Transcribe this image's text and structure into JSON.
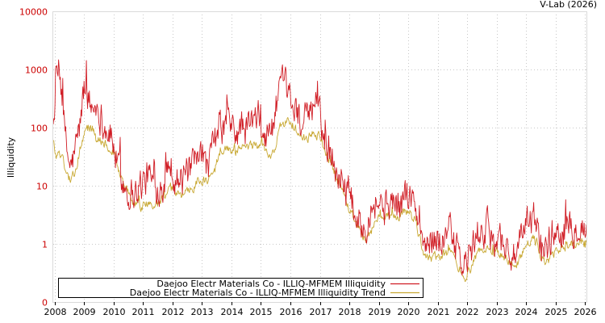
{
  "chart_data": {
    "type": "line",
    "credit": "V-Lab (2026)",
    "ylabel": "Illiquidity",
    "yscale": "log",
    "ylim": [
      0.1,
      10000
    ],
    "xlim": [
      2007.95,
      2026.05
    ],
    "yticks": [
      {
        "value": 10000,
        "label": "10000"
      },
      {
        "value": 1000,
        "label": "1000"
      },
      {
        "value": 100,
        "label": "100"
      },
      {
        "value": 10,
        "label": "10"
      },
      {
        "value": 1,
        "label": "1"
      },
      {
        "value": 0.1,
        "label": "0"
      }
    ],
    "xticks": [
      "2008",
      "2009",
      "2010",
      "2011",
      "2012",
      "2013",
      "2014",
      "2015",
      "2016",
      "2017",
      "2018",
      "2019",
      "2020",
      "2021",
      "2022",
      "2023",
      "2024",
      "2025",
      "2026"
    ],
    "series": [
      {
        "name": "Daejoo Electr Materials Co - ILLIQ-MFMEM Illiquidity",
        "color": "#d01c24",
        "noise": 0.55,
        "points": [
          [
            2007.95,
            120
          ],
          [
            2008.05,
            600
          ],
          [
            2008.15,
            900
          ],
          [
            2008.25,
            400
          ],
          [
            2008.35,
            60
          ],
          [
            2008.45,
            30
          ],
          [
            2008.55,
            20
          ],
          [
            2008.7,
            40
          ],
          [
            2008.85,
            100
          ],
          [
            2009.0,
            500
          ],
          [
            2009.1,
            400
          ],
          [
            2009.25,
            200
          ],
          [
            2009.4,
            250
          ],
          [
            2009.55,
            180
          ],
          [
            2009.7,
            100
          ],
          [
            2009.85,
            90
          ],
          [
            2010.0,
            50
          ],
          [
            2010.15,
            20
          ],
          [
            2010.3,
            12
          ],
          [
            2010.45,
            9
          ],
          [
            2010.6,
            8
          ],
          [
            2010.75,
            8
          ],
          [
            2010.9,
            10
          ],
          [
            2011.05,
            12
          ],
          [
            2011.2,
            15
          ],
          [
            2011.35,
            10
          ],
          [
            2011.5,
            10
          ],
          [
            2011.65,
            12
          ],
          [
            2011.8,
            15
          ],
          [
            2011.9,
            30
          ],
          [
            2012.0,
            20
          ],
          [
            2012.1,
            15
          ],
          [
            2012.25,
            12
          ],
          [
            2012.4,
            12
          ],
          [
            2012.55,
            18
          ],
          [
            2012.7,
            18
          ],
          [
            2012.85,
            25
          ],
          [
            2013.0,
            25
          ],
          [
            2013.15,
            20
          ],
          [
            2013.3,
            30
          ],
          [
            2013.45,
            60
          ],
          [
            2013.6,
            100
          ],
          [
            2013.75,
            100
          ],
          [
            2013.9,
            150
          ],
          [
            2014.05,
            80
          ],
          [
            2014.2,
            80
          ],
          [
            2014.35,
            100
          ],
          [
            2014.5,
            90
          ],
          [
            2014.65,
            120
          ],
          [
            2014.8,
            120
          ],
          [
            2014.95,
            130
          ],
          [
            2015.05,
            100
          ],
          [
            2015.15,
            60
          ],
          [
            2015.25,
            80
          ],
          [
            2015.35,
            100
          ],
          [
            2015.45,
            120
          ],
          [
            2015.55,
            300
          ],
          [
            2015.7,
            450
          ],
          [
            2015.85,
            400
          ],
          [
            2016.0,
            250
          ],
          [
            2016.1,
            250
          ],
          [
            2016.25,
            200
          ],
          [
            2016.4,
            120
          ],
          [
            2016.55,
            120
          ],
          [
            2016.7,
            150
          ],
          [
            2016.85,
            300
          ],
          [
            2017.0,
            200
          ],
          [
            2017.1,
            80
          ],
          [
            2017.25,
            50
          ],
          [
            2017.4,
            35
          ],
          [
            2017.55,
            20
          ],
          [
            2017.7,
            15
          ],
          [
            2017.85,
            10
          ],
          [
            2018.0,
            6
          ],
          [
            2018.15,
            4
          ],
          [
            2018.3,
            3
          ],
          [
            2018.45,
            2
          ],
          [
            2018.6,
            3
          ],
          [
            2018.75,
            5
          ],
          [
            2018.9,
            6
          ],
          [
            2019.05,
            5
          ],
          [
            2019.2,
            4
          ],
          [
            2019.35,
            5
          ],
          [
            2019.5,
            6
          ],
          [
            2019.65,
            4
          ],
          [
            2019.8,
            5
          ],
          [
            2019.95,
            8
          ],
          [
            2020.1,
            6
          ],
          [
            2020.25,
            4
          ],
          [
            2020.4,
            1.5
          ],
          [
            2020.55,
            0.9
          ],
          [
            2020.7,
            0.9
          ],
          [
            2020.85,
            1.3
          ],
          [
            2021.0,
            1.6
          ],
          [
            2021.15,
            1.2
          ],
          [
            2021.3,
            1.4
          ],
          [
            2021.45,
            1.5
          ],
          [
            2021.6,
            0.9
          ],
          [
            2021.75,
            0.5
          ],
          [
            2021.9,
            0.4
          ],
          [
            2022.05,
            0.6
          ],
          [
            2022.2,
            0.8
          ],
          [
            2022.35,
            1.4
          ],
          [
            2022.5,
            1.8
          ],
          [
            2022.65,
            1.6
          ],
          [
            2022.8,
            1.5
          ],
          [
            2022.95,
            1.3
          ],
          [
            2023.1,
            1.4
          ],
          [
            2023.25,
            1.0
          ],
          [
            2023.4,
            0.8
          ],
          [
            2023.55,
            0.6
          ],
          [
            2023.7,
            0.7
          ],
          [
            2023.85,
            1.0
          ],
          [
            2024.0,
            1.8
          ],
          [
            2024.15,
            3.2
          ],
          [
            2024.3,
            2.5
          ],
          [
            2024.45,
            1.3
          ],
          [
            2024.6,
            0.8
          ],
          [
            2024.75,
            1.0
          ],
          [
            2024.9,
            1.5
          ],
          [
            2025.05,
            1.6
          ],
          [
            2025.2,
            1.8
          ],
          [
            2025.35,
            2.0
          ],
          [
            2025.5,
            2.1
          ],
          [
            2025.65,
            2.2
          ],
          [
            2025.8,
            2.5
          ],
          [
            2025.95,
            2.0
          ],
          [
            2026.05,
            1.6
          ]
        ]
      },
      {
        "name": "Daejoo Electr Materials Co - ILLIQ-MFMEM Illiquidity Trend",
        "color": "#c8a832",
        "noise": 0.16,
        "points": [
          [
            2007.95,
            60
          ],
          [
            2008.05,
            30
          ],
          [
            2008.15,
            40
          ],
          [
            2008.3,
            25
          ],
          [
            2008.45,
            15
          ],
          [
            2008.55,
            11
          ],
          [
            2008.7,
            20
          ],
          [
            2008.85,
            40
          ],
          [
            2009.0,
            80
          ],
          [
            2009.15,
            100
          ],
          [
            2009.3,
            90
          ],
          [
            2009.45,
            70
          ],
          [
            2009.6,
            60
          ],
          [
            2009.75,
            55
          ],
          [
            2009.9,
            45
          ],
          [
            2010.0,
            40
          ],
          [
            2010.15,
            20
          ],
          [
            2010.3,
            12
          ],
          [
            2010.45,
            8
          ],
          [
            2010.6,
            6
          ],
          [
            2010.75,
            5
          ],
          [
            2010.9,
            4.5
          ],
          [
            2011.05,
            4.5
          ],
          [
            2011.2,
            5
          ],
          [
            2011.35,
            4.5
          ],
          [
            2011.5,
            5
          ],
          [
            2011.65,
            6
          ],
          [
            2011.8,
            8
          ],
          [
            2011.95,
            9
          ],
          [
            2012.1,
            8
          ],
          [
            2012.25,
            7
          ],
          [
            2012.4,
            7
          ],
          [
            2012.55,
            9
          ],
          [
            2012.7,
            10
          ],
          [
            2012.85,
            12
          ],
          [
            2013.0,
            12
          ],
          [
            2013.15,
            12
          ],
          [
            2013.3,
            14
          ],
          [
            2013.45,
            20
          ],
          [
            2013.6,
            35
          ],
          [
            2013.75,
            45
          ],
          [
            2013.9,
            45
          ],
          [
            2014.05,
            40
          ],
          [
            2014.2,
            38
          ],
          [
            2014.35,
            42
          ],
          [
            2014.5,
            45
          ],
          [
            2014.65,
            48
          ],
          [
            2014.8,
            50
          ],
          [
            2014.95,
            50
          ],
          [
            2015.1,
            45
          ],
          [
            2015.2,
            35
          ],
          [
            2015.3,
            30
          ],
          [
            2015.45,
            40
          ],
          [
            2015.6,
            90
          ],
          [
            2015.75,
            110
          ],
          [
            2015.9,
            130
          ],
          [
            2016.05,
            120
          ],
          [
            2016.2,
            90
          ],
          [
            2016.35,
            70
          ],
          [
            2016.5,
            65
          ],
          [
            2016.65,
            70
          ],
          [
            2016.8,
            80
          ],
          [
            2016.95,
            75
          ],
          [
            2017.1,
            50
          ],
          [
            2017.25,
            35
          ],
          [
            2017.4,
            25
          ],
          [
            2017.55,
            15
          ],
          [
            2017.7,
            10
          ],
          [
            2017.85,
            7
          ],
          [
            2018.0,
            4
          ],
          [
            2018.15,
            3
          ],
          [
            2018.3,
            2
          ],
          [
            2018.45,
            1.4
          ],
          [
            2018.55,
            1.2
          ],
          [
            2018.7,
            1.6
          ],
          [
            2018.85,
            2.2
          ],
          [
            2019.0,
            2.6
          ],
          [
            2019.15,
            2.6
          ],
          [
            2019.3,
            2.8
          ],
          [
            2019.45,
            3.0
          ],
          [
            2019.6,
            2.8
          ],
          [
            2019.75,
            3.0
          ],
          [
            2019.9,
            3.8
          ],
          [
            2020.05,
            3.6
          ],
          [
            2020.2,
            2.6
          ],
          [
            2020.35,
            1.5
          ],
          [
            2020.5,
            0.8
          ],
          [
            2020.65,
            0.6
          ],
          [
            2020.8,
            0.55
          ],
          [
            2020.95,
            0.6
          ],
          [
            2021.1,
            0.65
          ],
          [
            2021.25,
            0.65
          ],
          [
            2021.4,
            0.7
          ],
          [
            2021.55,
            0.6
          ],
          [
            2021.7,
            0.4
          ],
          [
            2021.85,
            0.3
          ],
          [
            2021.95,
            0.28
          ],
          [
            2022.1,
            0.35
          ],
          [
            2022.25,
            0.5
          ],
          [
            2022.4,
            0.7
          ],
          [
            2022.55,
            0.8
          ],
          [
            2022.7,
            0.8
          ],
          [
            2022.85,
            0.75
          ],
          [
            2023.0,
            0.75
          ],
          [
            2023.15,
            0.7
          ],
          [
            2023.3,
            0.6
          ],
          [
            2023.45,
            0.45
          ],
          [
            2023.6,
            0.45
          ],
          [
            2023.75,
            0.5
          ],
          [
            2023.9,
            0.7
          ],
          [
            2024.05,
            1.0
          ],
          [
            2024.2,
            1.3
          ],
          [
            2024.35,
            1.1
          ],
          [
            2024.5,
            0.6
          ],
          [
            2024.65,
            0.5
          ],
          [
            2024.8,
            0.55
          ],
          [
            2024.95,
            0.7
          ],
          [
            2025.1,
            0.8
          ],
          [
            2025.25,
            0.85
          ],
          [
            2025.4,
            0.9
          ],
          [
            2025.55,
            0.95
          ],
          [
            2025.7,
            1.0
          ],
          [
            2025.85,
            1.2
          ],
          [
            2026.05,
            1.0
          ]
        ]
      }
    ],
    "legend": {
      "position": "bottom-left"
    }
  }
}
